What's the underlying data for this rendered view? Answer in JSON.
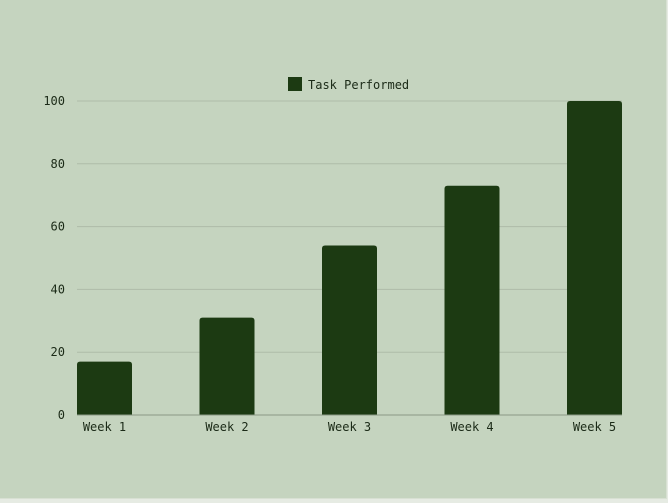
{
  "chart_data": {
    "type": "bar",
    "categories": [
      "Week 1",
      "Week 2",
      "Week 3",
      "Week 4",
      "Week 5"
    ],
    "series": [
      {
        "name": "Task Performed",
        "values": [
          17,
          31,
          54,
          73,
          100
        ]
      }
    ],
    "ylim": [
      0,
      100
    ],
    "yticks": [
      0,
      20,
      40,
      60,
      80,
      100
    ],
    "grid": true,
    "legend_position": "top-center",
    "colors": {
      "bar": "#1c3a12",
      "background": "#c5d4bf",
      "grid": "#aebba8",
      "text": "#1b2a17"
    }
  }
}
